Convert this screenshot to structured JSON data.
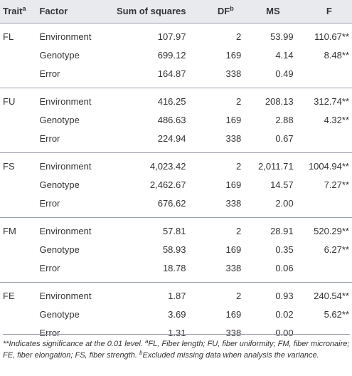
{
  "table": {
    "headers": {
      "trait": "Trait",
      "trait_sup": "a",
      "factor": "Factor",
      "sum_of_squares": "Sum of squares",
      "df": "DF",
      "df_sup": "b",
      "ms": "MS",
      "f": "F"
    },
    "groups": [
      {
        "trait": "FL",
        "rows": [
          {
            "factor": "Environment",
            "ss": "107.97",
            "df": "2",
            "ms": "53.99",
            "f": "110.67**"
          },
          {
            "factor": "Genotype",
            "ss": "699.12",
            "df": "169",
            "ms": "4.14",
            "f": "8.48**"
          },
          {
            "factor": "Error",
            "ss": "164.87",
            "df": "338",
            "ms": "0.49",
            "f": ""
          }
        ]
      },
      {
        "trait": "FU",
        "rows": [
          {
            "factor": "Environment",
            "ss": "416.25",
            "df": "2",
            "ms": "208.13",
            "f": "312.74**"
          },
          {
            "factor": "Genotype",
            "ss": "486.63",
            "df": "169",
            "ms": "2.88",
            "f": "4.32**"
          },
          {
            "factor": "Error",
            "ss": "224.94",
            "df": "338",
            "ms": "0.67",
            "f": ""
          }
        ]
      },
      {
        "trait": "FS",
        "rows": [
          {
            "factor": "Environment",
            "ss": "4,023.42",
            "df": "2",
            "ms": "2,011.71",
            "f": "1004.94**"
          },
          {
            "factor": "Genotype",
            "ss": "2,462.67",
            "df": "169",
            "ms": "14.57",
            "f": "7.27**"
          },
          {
            "factor": "Error",
            "ss": "676.62",
            "df": "338",
            "ms": "2.00",
            "f": ""
          }
        ]
      },
      {
        "trait": "FM",
        "rows": [
          {
            "factor": "Environment",
            "ss": "57.81",
            "df": "2",
            "ms": "28.91",
            "f": "520.29**"
          },
          {
            "factor": "Genotype",
            "ss": "58.93",
            "df": "169",
            "ms": "0.35",
            "f": "6.27**"
          },
          {
            "factor": "Error",
            "ss": "18.78",
            "df": "338",
            "ms": "0.06",
            "f": ""
          }
        ]
      },
      {
        "trait": "FE",
        "rows": [
          {
            "factor": "Environment",
            "ss": "1.87",
            "df": "2",
            "ms": "0.93",
            "f": "240.54**"
          },
          {
            "factor": "Genotype",
            "ss": "3.69",
            "df": "169",
            "ms": "0.02",
            "f": "5.62**"
          },
          {
            "factor": "Error",
            "ss": "1.31",
            "df": "338",
            "ms": "0.00",
            "f": ""
          }
        ]
      }
    ]
  },
  "footnote": {
    "part1": "**Indicates significance at the 0.01 level. ",
    "sup_a": "a",
    "part2": "FL, Fiber length; FU, fiber uniformity; FM, fiber micronaire; FE, fiber elongation; FS, fiber strength. ",
    "sup_b": "b",
    "part3": "Excluded missing data when analysis the variance."
  },
  "colors": {
    "header_bg": "#e9eaee",
    "rule": "#9aa0ad",
    "text": "#333333"
  }
}
